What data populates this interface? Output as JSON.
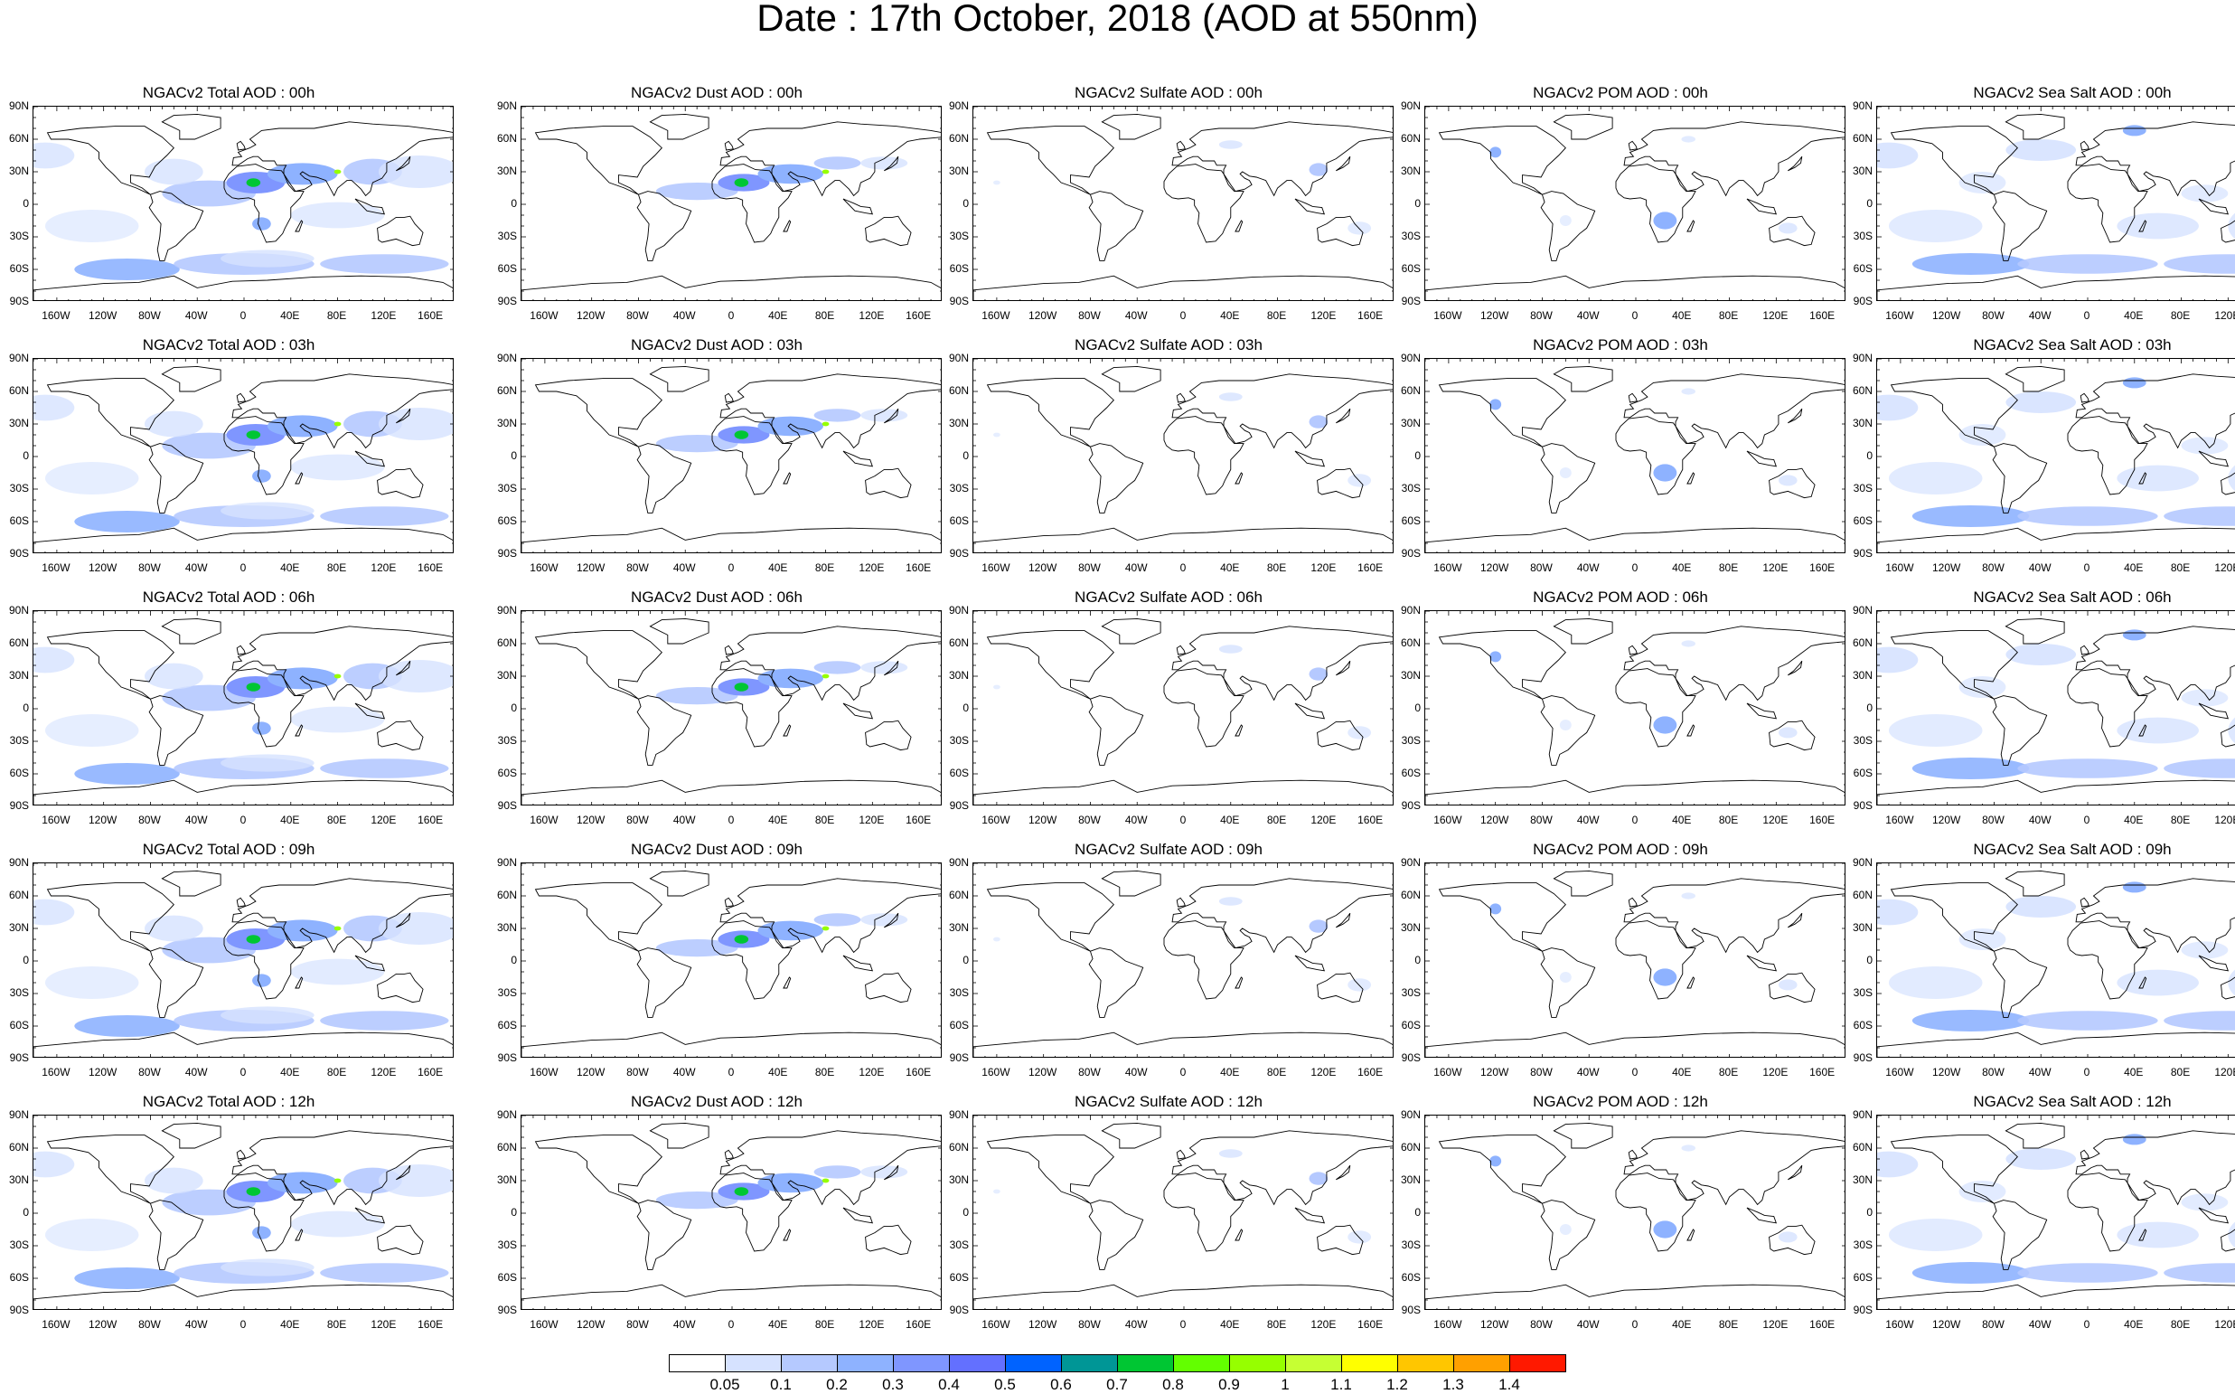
{
  "title": "Date : 17th October, 2018 (AOD at 550nm)",
  "lat_ticks": [
    "90N",
    "60N",
    "30N",
    "0",
    "30S",
    "60S",
    "90S"
  ],
  "lon_ticks": [
    "160W",
    "120W",
    "80W",
    "40W",
    "0",
    "40E",
    "80E",
    "120E",
    "160E"
  ],
  "panels": [
    [
      "NGACv2 Total AOD : 00h",
      "NGACv2 Dust AOD : 00h",
      "NGACv2 Sulfate AOD : 00h",
      "NGACv2 POM AOD : 00h",
      "NGACv2 Sea Salt AOD : 00h"
    ],
    [
      "NGACv2 Total AOD : 03h",
      "NGACv2 Dust AOD : 03h",
      "NGACv2 Sulfate AOD : 03h",
      "NGACv2 POM AOD : 03h",
      "NGACv2 Sea Salt AOD : 03h"
    ],
    [
      "NGACv2 Total AOD : 06h",
      "NGACv2 Dust AOD : 06h",
      "NGACv2 Sulfate AOD : 06h",
      "NGACv2 POM AOD : 06h",
      "NGACv2 Sea Salt AOD : 06h"
    ],
    [
      "NGACv2 Total AOD : 09h",
      "NGACv2 Dust AOD : 09h",
      "NGACv2 Sulfate AOD : 09h",
      "NGACv2 POM AOD : 09h",
      "NGACv2 Sea Salt  AOD : 09h"
    ],
    [
      "NGACv2 Total AOD :  12h",
      "NGACv2 Dust AOD : 12h",
      "NGACv2 Sulfate AOD : 12h",
      "NGACv2 POM  AOD : 12h",
      "NGACv2 Sea Salt AOD : 12h"
    ]
  ],
  "panel_types": [
    "total",
    "dust",
    "sulfate",
    "pom",
    "seasalt"
  ],
  "colorbar": {
    "labels": [
      "0.05",
      "0.1",
      "0.2",
      "0.3",
      "0.4",
      "0.5",
      "0.6",
      "0.7",
      "0.8",
      "0.9",
      "1",
      "1.1",
      "1.2",
      "1.3",
      "1.4"
    ],
    "colors": [
      "#ffffff",
      "#d6e2ff",
      "#b5c9ff",
      "#8eb2ff",
      "#7f96ff",
      "#6370ff",
      "#0063ff",
      "#009696",
      "#00c633",
      "#63ff00",
      "#96ff00",
      "#c6ff33",
      "#ffff00",
      "#ffc600",
      "#ffa000",
      "#ff7c00",
      "#ff1900"
    ]
  }
}
